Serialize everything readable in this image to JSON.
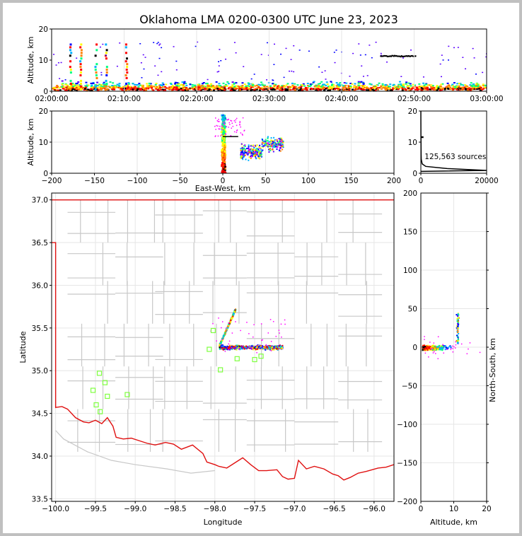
{
  "title": "Oklahoma LMA 0200-0300 UTC June 23, 2023",
  "source_count_label": "125,563 sources",
  "chart_data": [
    {
      "id": "time_height",
      "type": "heatmap",
      "xlabel": "",
      "ylabel": "Altitude, km",
      "xticks": [
        "02:00:00",
        "02:10:00",
        "02:20:00",
        "02:30:00",
        "02:40:00",
        "02:50:00",
        "03:00:00"
      ],
      "xlim_minutes": [
        0,
        60
      ],
      "ylim": [
        0,
        20
      ],
      "yticks": [
        0,
        10,
        20
      ]
    },
    {
      "id": "ew_height",
      "type": "heatmap",
      "xlabel": "East-West, km",
      "ylabel": "Altitude, km",
      "xlim": [
        -200,
        200
      ],
      "xticks": [
        -200,
        -150,
        -100,
        -50,
        0,
        50,
        100,
        150,
        200
      ],
      "ylim": [
        0,
        20
      ],
      "yticks": [
        0,
        10,
        20
      ]
    },
    {
      "id": "altitude_histogram",
      "type": "line",
      "xlabel": "",
      "ylabel": "",
      "xlim": [
        0,
        20000
      ],
      "xticks": [
        0,
        20000
      ],
      "ylim": [
        0,
        20
      ],
      "yticks": [
        0,
        10,
        20
      ]
    },
    {
      "id": "plan_view",
      "type": "scatter",
      "xlabel": "Longitude",
      "ylabel": "Latitude",
      "xlim": [
        -100.05,
        -95.75
      ],
      "ylim": [
        33.47,
        37.08
      ],
      "xticks": [
        -100.0,
        -99.5,
        -99.0,
        -98.5,
        -98.0,
        -97.5,
        -97.0,
        -96.5,
        -96.0
      ],
      "yticks": [
        33.5,
        34.0,
        34.5,
        35.0,
        35.5,
        36.0,
        36.5,
        37.0
      ],
      "stations": [
        {
          "lon": -98.02,
          "lat": 35.47
        },
        {
          "lon": -98.07,
          "lat": 35.25
        },
        {
          "lon": -97.93,
          "lat": 35.01
        },
        {
          "lon": -97.72,
          "lat": 35.14
        },
        {
          "lon": -97.5,
          "lat": 35.13
        },
        {
          "lon": -97.42,
          "lat": 35.17
        },
        {
          "lon": -99.45,
          "lat": 34.97
        },
        {
          "lon": -99.38,
          "lat": 34.86
        },
        {
          "lon": -99.53,
          "lat": 34.77
        },
        {
          "lon": -99.35,
          "lat": 34.7
        },
        {
          "lon": -99.1,
          "lat": 34.72
        },
        {
          "lon": -99.49,
          "lat": 34.6
        },
        {
          "lon": -99.44,
          "lat": 34.52
        }
      ]
    },
    {
      "id": "ns_height",
      "type": "heatmap",
      "xlabel": "Altitude, km",
      "ylabel": "North-South, km",
      "xlim": [
        0,
        20
      ],
      "xticks": [
        0,
        10,
        20
      ],
      "ylim": [
        -200,
        200
      ],
      "yticks": [
        -200,
        -150,
        -100,
        -50,
        0,
        50,
        100,
        150,
        200
      ]
    }
  ],
  "colors": {
    "state_border": "#e01010",
    "county_lines": "#c8c8c8",
    "station_marker": "#7fff40",
    "density_scale": [
      "#ff00ff",
      "#5a00ff",
      "#0000ff",
      "#00b0ff",
      "#00ff80",
      "#ffff00",
      "#ff8000",
      "#ff0000",
      "#000000"
    ]
  }
}
